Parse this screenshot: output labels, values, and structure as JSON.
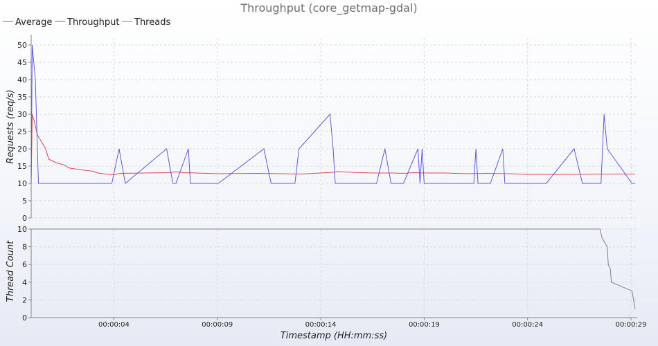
{
  "chart_data": [
    {
      "type": "line",
      "title": "Throughput (core_getmap-gdal)",
      "ylabel": "Requests (req/s)",
      "ylim": [
        0,
        52
      ],
      "yticks": [
        0,
        5,
        10,
        15,
        20,
        25,
        30,
        35,
        40,
        45,
        50
      ],
      "grid": true,
      "legend_position": "top-left",
      "series": [
        {
          "name": "Average",
          "color": "#e0474c",
          "points": [
            [
              0.0,
              10
            ],
            [
              0.05,
              30
            ],
            [
              0.15,
              28
            ],
            [
              0.3,
              24
            ],
            [
              0.5,
              22
            ],
            [
              0.7,
              20
            ],
            [
              0.85,
              17
            ],
            [
              1.2,
              16
            ],
            [
              1.5,
              15.5
            ],
            [
              1.7,
              15
            ],
            [
              1.8,
              14.5
            ],
            [
              2.3,
              14
            ],
            [
              3.0,
              13.5
            ],
            [
              3.2,
              13
            ],
            [
              3.6,
              12.7
            ],
            [
              4.0,
              12.5
            ],
            [
              4.3,
              12.9
            ],
            [
              5.5,
              13
            ],
            [
              6.6,
              13.1
            ],
            [
              7.0,
              13.3
            ],
            [
              7.4,
              13.1
            ],
            [
              8.0,
              13
            ],
            [
              9.0,
              12.8
            ],
            [
              11.0,
              12.9
            ],
            [
              12.0,
              12.8
            ],
            [
              13.0,
              12.7
            ],
            [
              14.0,
              13
            ],
            [
              14.6,
              13.2
            ],
            [
              14.8,
              13.4
            ],
            [
              15.5,
              13.2
            ],
            [
              16.5,
              13
            ],
            [
              17.5,
              13
            ],
            [
              18.0,
              12.9
            ],
            [
              18.5,
              13.1
            ],
            [
              19.0,
              13
            ],
            [
              20.0,
              13
            ],
            [
              21.0,
              12.8
            ],
            [
              22.0,
              12.9
            ],
            [
              23.0,
              12.8
            ],
            [
              24.0,
              12.6
            ],
            [
              26.0,
              12.6
            ],
            [
              28.0,
              12.7
            ],
            [
              29.2,
              12.7
            ]
          ]
        },
        {
          "name": "Throughput",
          "color": "#5a5ae0",
          "points": [
            [
              0.0,
              10
            ],
            [
              0.05,
              50
            ],
            [
              0.2,
              40
            ],
            [
              0.35,
              10
            ],
            [
              3.9,
              10
            ],
            [
              4.25,
              20
            ],
            [
              4.55,
              10
            ],
            [
              6.55,
              20
            ],
            [
              6.85,
              10
            ],
            [
              7.0,
              10
            ],
            [
              7.6,
              20
            ],
            [
              7.7,
              10
            ],
            [
              9.05,
              10
            ],
            [
              11.25,
              20
            ],
            [
              11.6,
              10
            ],
            [
              12.75,
              10
            ],
            [
              12.95,
              20
            ],
            [
              14.45,
              30
            ],
            [
              14.6,
              20
            ],
            [
              14.7,
              10
            ],
            [
              16.7,
              10
            ],
            [
              17.1,
              20
            ],
            [
              17.4,
              10
            ],
            [
              18.0,
              10
            ],
            [
              18.7,
              20
            ],
            [
              18.8,
              10
            ],
            [
              18.9,
              20
            ],
            [
              19.0,
              10
            ],
            [
              21.4,
              10
            ],
            [
              21.5,
              20
            ],
            [
              21.6,
              10
            ],
            [
              22.2,
              10
            ],
            [
              22.8,
              20
            ],
            [
              22.9,
              10
            ],
            [
              24.9,
              10
            ],
            [
              26.25,
              20
            ],
            [
              26.65,
              10
            ],
            [
              27.55,
              10
            ],
            [
              27.7,
              30
            ],
            [
              27.85,
              20
            ],
            [
              29.05,
              10
            ],
            [
              29.2,
              10
            ]
          ]
        }
      ]
    },
    {
      "type": "line",
      "ylabel": "Thread Count",
      "xlabel": "Timestamp (HH:mm:ss)",
      "ylim": [
        0,
        10
      ],
      "yticks": [
        0,
        2,
        4,
        6,
        8,
        10
      ],
      "xlim": [
        0,
        29.3
      ],
      "xticks": [
        {
          "value": 4,
          "label": "00:00:04"
        },
        {
          "value": 9,
          "label": "00:00:09"
        },
        {
          "value": 14,
          "label": "00:00:14"
        },
        {
          "value": 19,
          "label": "00:00:19"
        },
        {
          "value": 24,
          "label": "00:00:24"
        },
        {
          "value": 29,
          "label": "00:00:29"
        }
      ],
      "grid": true,
      "series": [
        {
          "name": "Threads",
          "color": "#808080",
          "points": [
            [
              0.0,
              10
            ],
            [
              27.5,
              10
            ],
            [
              27.6,
              9
            ],
            [
              27.85,
              8
            ],
            [
              27.9,
              6
            ],
            [
              28.0,
              5.5
            ],
            [
              28.05,
              4
            ],
            [
              29.05,
              3
            ],
            [
              29.2,
              1
            ]
          ]
        }
      ]
    }
  ]
}
